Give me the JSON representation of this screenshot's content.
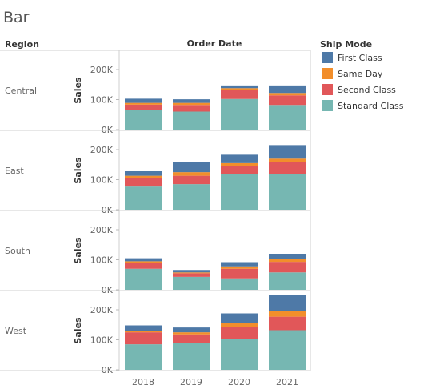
{
  "title": "Bar",
  "headers": {
    "row": "Region",
    "column": "Order Date"
  },
  "chart_data": {
    "type": "bar",
    "stacked": true,
    "categories": [
      "2018",
      "2019",
      "2020",
      "2021"
    ],
    "ylabel": "Sales",
    "ylim": [
      0,
      270000
    ],
    "yticks": [
      0,
      100000,
      200000
    ],
    "ytick_labels": [
      "0K",
      "100K",
      "200K"
    ],
    "grid": false,
    "legend": {
      "title": "Ship Mode",
      "placement": "right",
      "items": [
        {
          "name": "First Class",
          "color": "#4e79a7"
        },
        {
          "name": "Same Day",
          "color": "#f28e2b"
        },
        {
          "name": "Second Class",
          "color": "#e15759"
        },
        {
          "name": "Standard Class",
          "color": "#76b7b2"
        }
      ]
    },
    "stack_order": [
      "Standard Class",
      "Second Class",
      "Same Day",
      "First Class"
    ],
    "panels": [
      {
        "region": "Central",
        "series": [
          {
            "name": "Standard Class",
            "values": [
              65000,
              60000,
              102000,
              82000
            ]
          },
          {
            "name": "Second Class",
            "values": [
              18000,
              22000,
              30000,
              32000
            ]
          },
          {
            "name": "Same Day",
            "values": [
              6000,
              7000,
              6000,
              8000
            ]
          },
          {
            "name": "First Class",
            "values": [
              14000,
              12000,
              9000,
              25000
            ]
          }
        ]
      },
      {
        "region": "East",
        "series": [
          {
            "name": "Standard Class",
            "values": [
              77000,
              85000,
              120000,
              118000
            ]
          },
          {
            "name": "Second Class",
            "values": [
              28000,
              28000,
              25000,
              40000
            ]
          },
          {
            "name": "Same Day",
            "values": [
              8000,
              12000,
              10000,
              12000
            ]
          },
          {
            "name": "First Class",
            "values": [
              15000,
              35000,
              28000,
              45000
            ]
          }
        ]
      },
      {
        "region": "South",
        "series": [
          {
            "name": "Standard Class",
            "values": [
              70000,
              43000,
              38000,
              58000
            ]
          },
          {
            "name": "Second Class",
            "values": [
              20000,
              12000,
              32000,
              35000
            ]
          },
          {
            "name": "Same Day",
            "values": [
              5000,
              3000,
              8000,
              10000
            ]
          },
          {
            "name": "First Class",
            "values": [
              10000,
              8000,
              14000,
              17000
            ]
          }
        ]
      },
      {
        "region": "West",
        "series": [
          {
            "name": "Standard Class",
            "values": [
              85000,
              88000,
              102000,
              132000
            ]
          },
          {
            "name": "Second Class",
            "values": [
              40000,
              30000,
              40000,
              45000
            ]
          },
          {
            "name": "Same Day",
            "values": [
              5000,
              7000,
              13000,
              20000
            ]
          },
          {
            "name": "First Class",
            "values": [
              18000,
              16000,
              33000,
              53000
            ]
          }
        ]
      }
    ]
  }
}
